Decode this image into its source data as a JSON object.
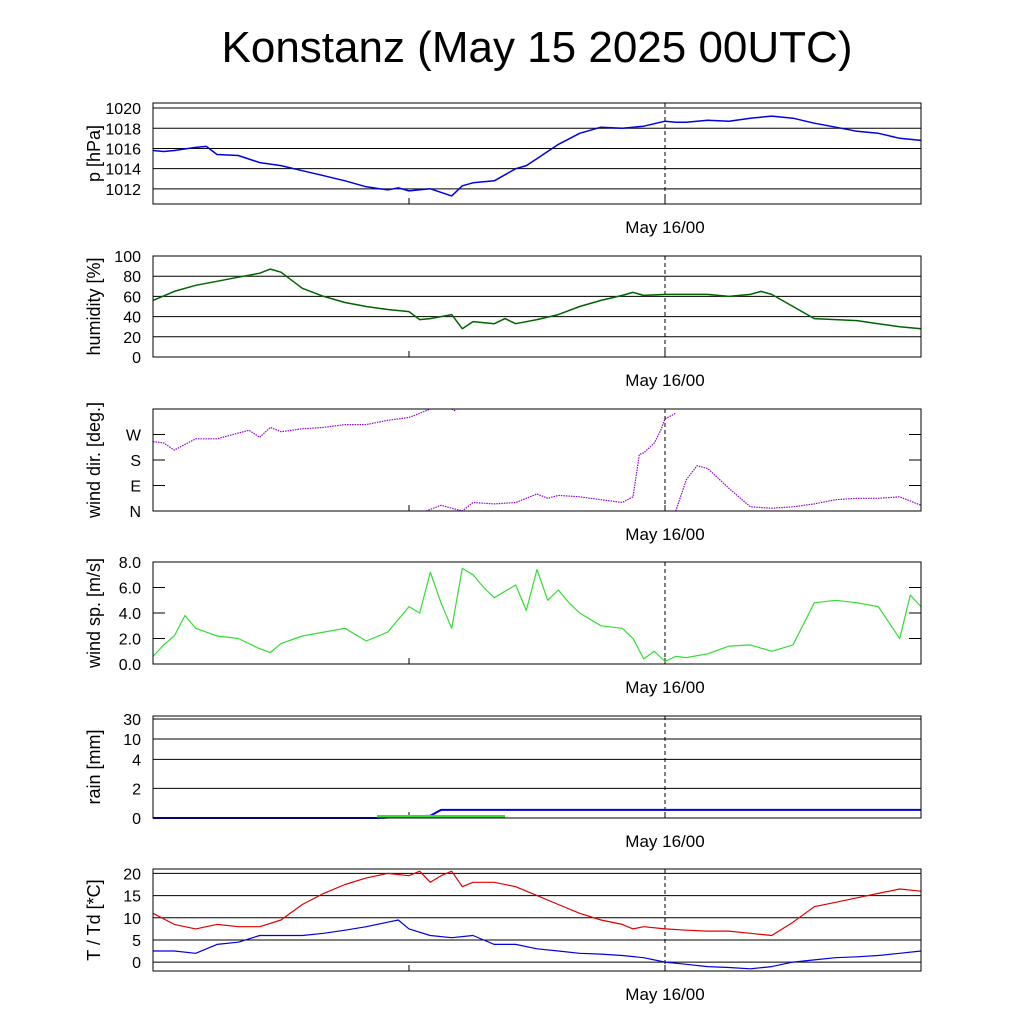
{
  "title": "Konstanz (May 15 2025 00UTC)",
  "x_axis": {
    "label": "May 16/00",
    "range_hours": [
      0,
      36
    ],
    "midnight_hour": 24
  },
  "colors": {
    "pressure": "#0000e0",
    "humidity": "#006400",
    "wind_dir": "#9400d3",
    "wind_speed": "#33dd33",
    "rain_total": "#0000e0",
    "rain_rate": "#33dd33",
    "temperature": "#e00000",
    "dewpoint": "#0000e0"
  },
  "chart_data": [
    {
      "type": "line",
      "ylabel": "p [hPa]",
      "ylim": [
        1010.5,
        1020.5
      ],
      "yticks": [
        1012,
        1014,
        1016,
        1018,
        1020
      ],
      "ytick_labels": [
        "1012",
        "1014",
        "1016",
        "1018",
        "1020"
      ],
      "grid": true,
      "series": [
        {
          "color_key": "pressure",
          "x": [
            0,
            0.5,
            1,
            2,
            2.5,
            3,
            4,
            5,
            6,
            7,
            8,
            9,
            10,
            11,
            11.5,
            12,
            13,
            14,
            14.5,
            15,
            16,
            17,
            17.5,
            18,
            19,
            20,
            21,
            22,
            23,
            24,
            24.5,
            25,
            26,
            27,
            28,
            29,
            30,
            31,
            32,
            33,
            34,
            35,
            36
          ],
          "y": [
            1015.8,
            1015.7,
            1015.8,
            1016.1,
            1016.2,
            1015.4,
            1015.3,
            1014.6,
            1014.3,
            1013.8,
            1013.3,
            1012.8,
            1012.2,
            1011.9,
            1012.1,
            1011.8,
            1012.0,
            1011.3,
            1012.3,
            1012.6,
            1012.8,
            1014.0,
            1014.3,
            1015.0,
            1016.4,
            1017.5,
            1018.1,
            1018.0,
            1018.2,
            1018.7,
            1018.6,
            1018.6,
            1018.8,
            1018.7,
            1019.0,
            1019.2,
            1019.0,
            1018.5,
            1018.1,
            1017.7,
            1017.5,
            1017.0,
            1016.8
          ]
        }
      ]
    },
    {
      "type": "line",
      "ylabel": "humidity [%]",
      "ylim": [
        0,
        100
      ],
      "yticks": [
        0,
        20,
        40,
        60,
        80,
        100
      ],
      "ytick_labels": [
        "0",
        "20",
        "40",
        "60",
        "80",
        "100"
      ],
      "grid": true,
      "series": [
        {
          "color_key": "humidity",
          "x": [
            0,
            1,
            2,
            3,
            4,
            5,
            5.5,
            6,
            7,
            8,
            9,
            10,
            11,
            12,
            12.5,
            13,
            14,
            14.5,
            15,
            16,
            16.5,
            17,
            18,
            19,
            20,
            21,
            22,
            22.5,
            23,
            24,
            25,
            26,
            27,
            28,
            28.5,
            29,
            30,
            31,
            32,
            33,
            34,
            35,
            36
          ],
          "y": [
            56,
            65,
            71,
            75,
            79,
            83,
            87,
            84,
            68,
            60,
            54,
            50,
            47,
            45,
            37,
            38,
            42,
            28,
            35,
            33,
            38,
            33,
            37,
            42,
            50,
            56,
            61,
            64,
            61,
            62,
            62,
            62,
            60,
            62,
            65,
            62,
            50,
            38,
            37,
            36,
            33,
            30,
            28
          ]
        }
      ]
    },
    {
      "type": "scatter",
      "ylabel": "wind dir. [deg.]",
      "ylim": [
        0,
        360
      ],
      "yticks": [
        0,
        90,
        180,
        270
      ],
      "ytick_labels": [
        "N",
        "E",
        "S",
        "W"
      ],
      "grid": false,
      "series": [
        {
          "color_key": "wind_dir",
          "x": [
            0,
            0.5,
            1,
            1.5,
            2,
            3,
            4,
            4.5,
            5,
            5.5,
            6,
            7,
            8,
            9,
            10,
            11,
            12,
            12.5,
            13
          ],
          "y": [
            245,
            240,
            215,
            235,
            255,
            255,
            275,
            285,
            260,
            295,
            280,
            290,
            295,
            305,
            305,
            320,
            330,
            345,
            360
          ]
        },
        {
          "color_key": "wind_dir",
          "x": [
            14,
            14.2
          ],
          "y": [
            360,
            352
          ]
        },
        {
          "color_key": "wind_dir",
          "x": [
            12.8,
            13.5,
            14,
            14.5,
            15,
            16,
            17,
            18,
            18.5,
            19,
            20,
            21,
            22,
            22.5,
            22.8,
            23,
            23.5,
            23.8,
            24,
            24.5
          ],
          "y": [
            0,
            20,
            10,
            0,
            30,
            25,
            30,
            60,
            45,
            55,
            50,
            40,
            30,
            50,
            200,
            205,
            240,
            285,
            325,
            345
          ]
        },
        {
          "color_key": "wind_dir",
          "x": [
            24.5,
            25,
            25.5,
            26,
            27,
            28,
            29,
            30,
            31,
            32,
            33,
            34,
            35,
            36
          ],
          "y": [
            0,
            110,
            160,
            150,
            80,
            15,
            10,
            15,
            25,
            40,
            45,
            45,
            50,
            20
          ]
        }
      ]
    },
    {
      "type": "line",
      "ylabel": "wind sp. [m/s]",
      "ylim": [
        0,
        8
      ],
      "yticks": [
        0,
        2,
        4,
        6,
        8
      ],
      "ytick_labels": [
        "0.0",
        "2.0",
        "4.0",
        "6.0",
        "8.0"
      ],
      "grid": false,
      "series": [
        {
          "color_key": "wind_speed",
          "x": [
            0,
            0.5,
            1,
            1.5,
            2,
            3,
            4,
            5,
            5.5,
            6,
            7,
            8,
            9,
            10,
            11,
            12,
            12.5,
            13,
            13.5,
            14,
            14.5,
            15,
            15.5,
            16,
            17,
            17.5,
            18,
            18.5,
            19,
            19.5,
            20,
            21,
            22,
            22.5,
            23,
            23.5,
            24,
            24.5,
            25,
            26,
            27,
            28,
            29,
            30,
            31,
            32,
            33,
            34,
            35,
            35.5,
            36
          ],
          "y": [
            0.6,
            1.5,
            2.2,
            3.8,
            2.8,
            2.2,
            2.0,
            1.2,
            0.9,
            1.6,
            2.2,
            2.5,
            2.8,
            1.8,
            2.5,
            4.5,
            4.0,
            7.2,
            4.8,
            2.8,
            7.5,
            7.0,
            6.0,
            5.2,
            6.2,
            4.2,
            7.4,
            5.0,
            5.8,
            4.8,
            4.0,
            3.0,
            2.8,
            2.0,
            0.4,
            1.0,
            0.2,
            0.6,
            0.5,
            0.8,
            1.4,
            1.5,
            1.0,
            1.5,
            4.8,
            5.0,
            4.8,
            4.5,
            2.0,
            5.4,
            4.5
          ]
        }
      ]
    },
    {
      "type": "line",
      "ylabel": "rain [mm]",
      "ylim": [
        0,
        30
      ],
      "yticks": [
        0,
        2,
        4,
        10,
        30
      ],
      "ytick_labels": [
        "0",
        "2",
        "4",
        "10",
        "30"
      ],
      "grid": true,
      "series": [
        {
          "color_key": "rain_total",
          "x": [
            0,
            10.5,
            12,
            13,
            13.5,
            36
          ],
          "y": [
            0,
            0,
            0.1,
            0.15,
            0.55,
            0.55
          ]
        },
        {
          "color_key": "rain_rate",
          "x": [
            10.5,
            16.5
          ],
          "y": [
            0.1,
            0.1
          ]
        }
      ]
    },
    {
      "type": "line",
      "ylabel": "T / Td [*C]",
      "ylim": [
        -2,
        21
      ],
      "yticks": [
        0,
        5,
        10,
        15,
        20
      ],
      "ytick_labels": [
        "0",
        "5",
        "10",
        "15",
        "20"
      ],
      "grid": true,
      "series": [
        {
          "name": "T",
          "color_key": "temperature",
          "x": [
            0,
            1,
            2,
            3,
            4,
            5,
            6,
            7,
            8,
            9,
            10,
            11,
            12,
            12.5,
            13,
            13.5,
            14,
            14.5,
            15,
            16,
            17,
            18,
            19,
            20,
            21,
            22,
            22.5,
            23,
            24,
            25,
            26,
            27,
            28,
            29,
            30,
            31,
            32,
            33,
            34,
            35,
            36
          ],
          "y": [
            11,
            8.5,
            7.5,
            8.5,
            8,
            8,
            9.5,
            13,
            15.5,
            17.5,
            19,
            20,
            19.5,
            20.5,
            18,
            19.5,
            20.5,
            17,
            18,
            18,
            17,
            15,
            13,
            11,
            9.5,
            8.5,
            7.5,
            8,
            7.5,
            7.2,
            7,
            7,
            6.5,
            6,
            9,
            12.5,
            13.5,
            14.5,
            15.5,
            16.5,
            16
          ]
        },
        {
          "name": "Td",
          "color_key": "dewpoint",
          "x": [
            0,
            1,
            2,
            3,
            4,
            5,
            6,
            7,
            8,
            9,
            10,
            11,
            11.5,
            12,
            13,
            14,
            15,
            15.5,
            16,
            17,
            18,
            19,
            20,
            21,
            22,
            23,
            24,
            25,
            26,
            27,
            28,
            29,
            30,
            31,
            32,
            33,
            34,
            35,
            36
          ],
          "y": [
            2.5,
            2.5,
            2,
            4,
            4.5,
            6,
            6,
            6,
            6.5,
            7.2,
            8,
            9,
            9.5,
            7.5,
            6,
            5.5,
            6,
            5,
            4,
            4,
            3,
            2.5,
            2,
            1.8,
            1.5,
            1,
            0,
            -0.5,
            -1,
            -1.2,
            -1.5,
            -1,
            0,
            0.5,
            1,
            1.2,
            1.5,
            2,
            2.5
          ]
        }
      ]
    }
  ]
}
